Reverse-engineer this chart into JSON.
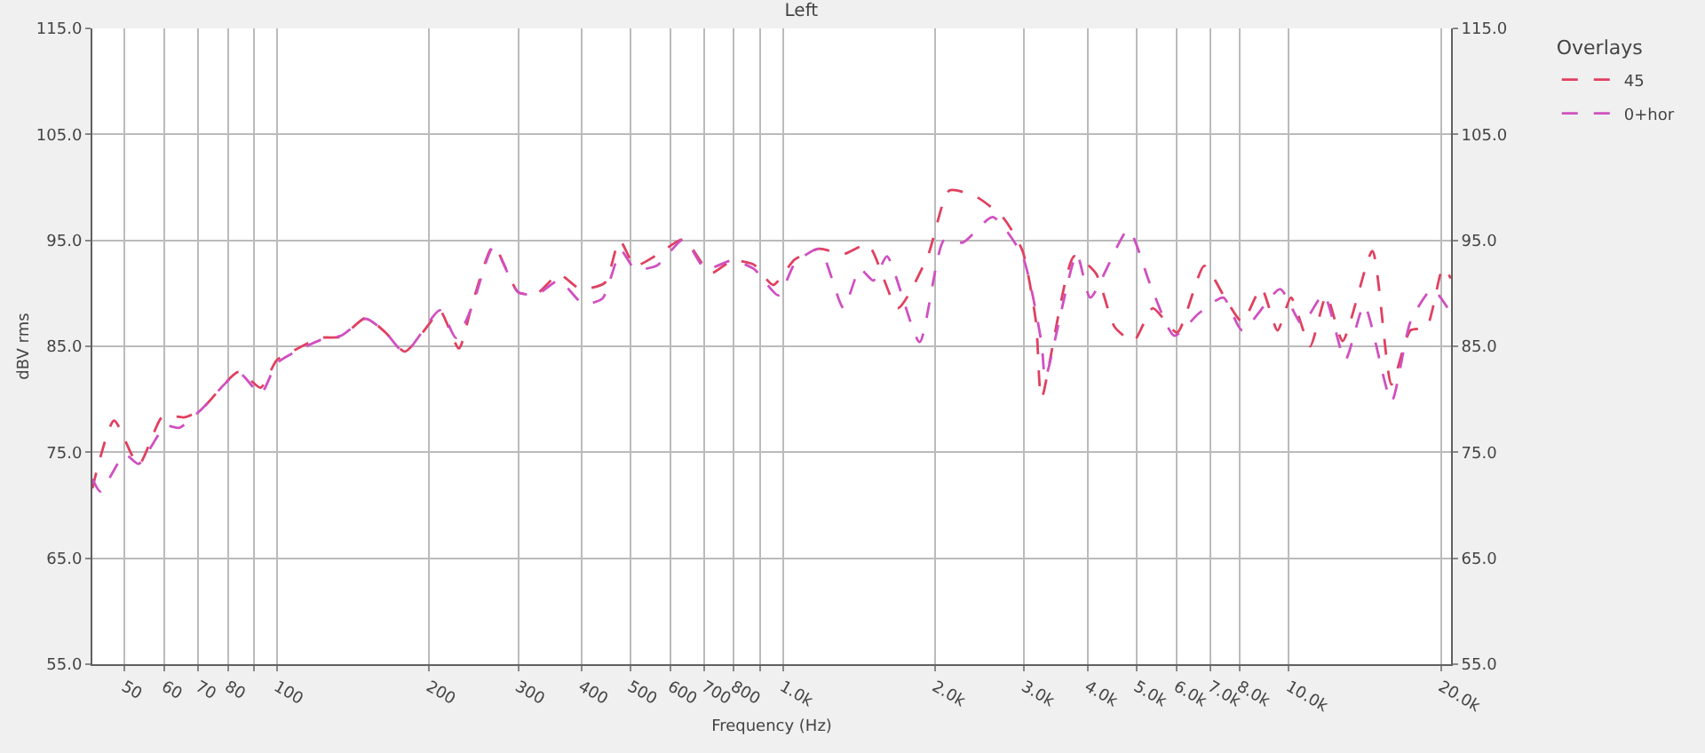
{
  "chart_data": {
    "type": "line",
    "title": "Left",
    "xlabel": "Frequency (Hz)",
    "ylabel": "dBV rms",
    "legend_title": "Overlays",
    "log": "x",
    "grid": true,
    "legend": "top right",
    "line_style": "dashed",
    "marker": "none",
    "xlim": [
      43.2,
      20910
    ],
    "xticks": [
      50,
      60,
      70,
      80,
      {
        "value": 90,
        "label": null
      },
      100,
      200,
      300,
      400,
      500,
      600,
      700,
      800,
      {
        "value": 900,
        "label": null
      },
      {
        "value": 1000,
        "label": "1.0k"
      },
      {
        "value": 2000,
        "label": "2.0k"
      },
      {
        "value": 3000,
        "label": "3.0k"
      },
      {
        "value": 4000,
        "label": "4.0k"
      },
      {
        "value": 5000,
        "label": "5.0k"
      },
      {
        "value": 6000,
        "label": "6.0k"
      },
      {
        "value": 7000,
        "label": "7.0k"
      },
      {
        "value": 8000,
        "label": "8.0k"
      },
      {
        "value": 10000,
        "label": "10.0k"
      },
      {
        "value": 20000,
        "label": "20.0k"
      }
    ],
    "ylim": [
      55,
      115
    ],
    "yticks": [
      {
        "value": 55,
        "label": "55.0"
      },
      {
        "value": 65,
        "label": "65.0"
      },
      {
        "value": 75,
        "label": "75.0"
      },
      {
        "value": 85,
        "label": "85.0"
      },
      {
        "value": 95,
        "label": "95.0"
      },
      {
        "value": 105,
        "label": "105.0"
      },
      {
        "value": 115,
        "label": "115.0"
      }
    ],
    "y2lim": [
      55,
      115
    ],
    "y2ticks": [
      {
        "value": 55,
        "label": "55.0"
      },
      {
        "value": 65,
        "label": "65.0"
      },
      {
        "value": 75,
        "label": "75.0"
      },
      {
        "value": 85,
        "label": "85.0"
      },
      {
        "value": 95,
        "label": "95.0"
      },
      {
        "value": 105,
        "label": "105.0"
      },
      {
        "value": 115,
        "label": "115.0"
      }
    ],
    "series": [
      {
        "name": "45",
        "color": "#e04060",
        "x": [
          43.2,
          47.7,
          53.3,
          59.5,
          65.7,
          70.8,
          84.1,
          92.9,
          100,
          110,
          122,
          134,
          150,
          164,
          179,
          200,
          210,
          229,
          243,
          268,
          300,
          327,
          361,
          398,
          445,
          476,
          510,
          563,
          637,
          720,
          795,
          877,
          957,
          1056,
          1180,
          1318,
          1473,
          1687,
          1933,
          2133,
          2413,
          2729,
          2976,
          3164,
          3245,
          3763,
          4153,
          4529,
          4934,
          5382,
          6013,
          6804,
          7510,
          8085,
          8817,
          9495,
          10097,
          11010,
          11860,
          12770,
          14620,
          15950,
          17380,
          18710,
          20150,
          20910
        ],
        "values": [
          71.6,
          78.0,
          73.8,
          78.4,
          78.3,
          79.0,
          82.6,
          81.1,
          83.7,
          84.8,
          85.8,
          85.9,
          87.7,
          86.3,
          84.5,
          87.1,
          88.4,
          84.8,
          88.9,
          94.5,
          90.1,
          90.0,
          91.8,
          90.4,
          91.0,
          95.0,
          92.6,
          93.6,
          95.1,
          91.9,
          93.1,
          92.7,
          90.8,
          93.2,
          94.2,
          93.7,
          94.6,
          88.6,
          93.5,
          99.7,
          99.1,
          97.1,
          94.0,
          87.3,
          80.1,
          93.5,
          91.9,
          86.8,
          85.5,
          88.6,
          86.3,
          92.6,
          89.4,
          87.3,
          90.5,
          86.5,
          89.6,
          85.0,
          89.8,
          85.5,
          94.0,
          81.4,
          86.5,
          86.8,
          92.4,
          91.4
        ]
      },
      {
        "name": "0+hor",
        "color": "#d050c0",
        "x": [
          43.2,
          44.8,
          50.1,
          53.3,
          60.3,
          64.1,
          70.8,
          84.1,
          92.9,
          100,
          110,
          122,
          134,
          150,
          164,
          179,
          210,
          226,
          243,
          268,
          300,
          327,
          361,
          403,
          440,
          479,
          510,
          563,
          637,
          703,
          795,
          877,
          980,
          1056,
          1180,
          1318,
          1420,
          1510,
          1606,
          1863,
          2081,
          2268,
          2599,
          2976,
          3245,
          3300,
          3808,
          4052,
          4815,
          5314,
          5937,
          6635,
          7417,
          8085,
          9608,
          10610,
          11710,
          12920,
          14090,
          15950,
          17380,
          19190,
          20910
        ],
        "values": [
          72.5,
          71.3,
          74.8,
          73.9,
          77.5,
          77.3,
          79.0,
          82.5,
          80.5,
          83.4,
          84.6,
          85.6,
          86.0,
          87.6,
          86.3,
          84.4,
          88.4,
          85.8,
          88.7,
          94.4,
          90.1,
          89.9,
          91.2,
          89.0,
          89.5,
          94.0,
          92.3,
          92.6,
          95.1,
          92.3,
          93.1,
          92.3,
          89.8,
          92.8,
          94.2,
          88.6,
          92.3,
          91.2,
          93.5,
          85.4,
          95.0,
          94.8,
          97.2,
          93.5,
          85.3,
          82.0,
          93.7,
          89.6,
          96.0,
          90.9,
          86.0,
          88.1,
          89.6,
          86.5,
          90.4,
          87.1,
          89.9,
          83.7,
          88.9,
          79.8,
          87.3,
          90.4,
          88.1
        ]
      }
    ]
  }
}
